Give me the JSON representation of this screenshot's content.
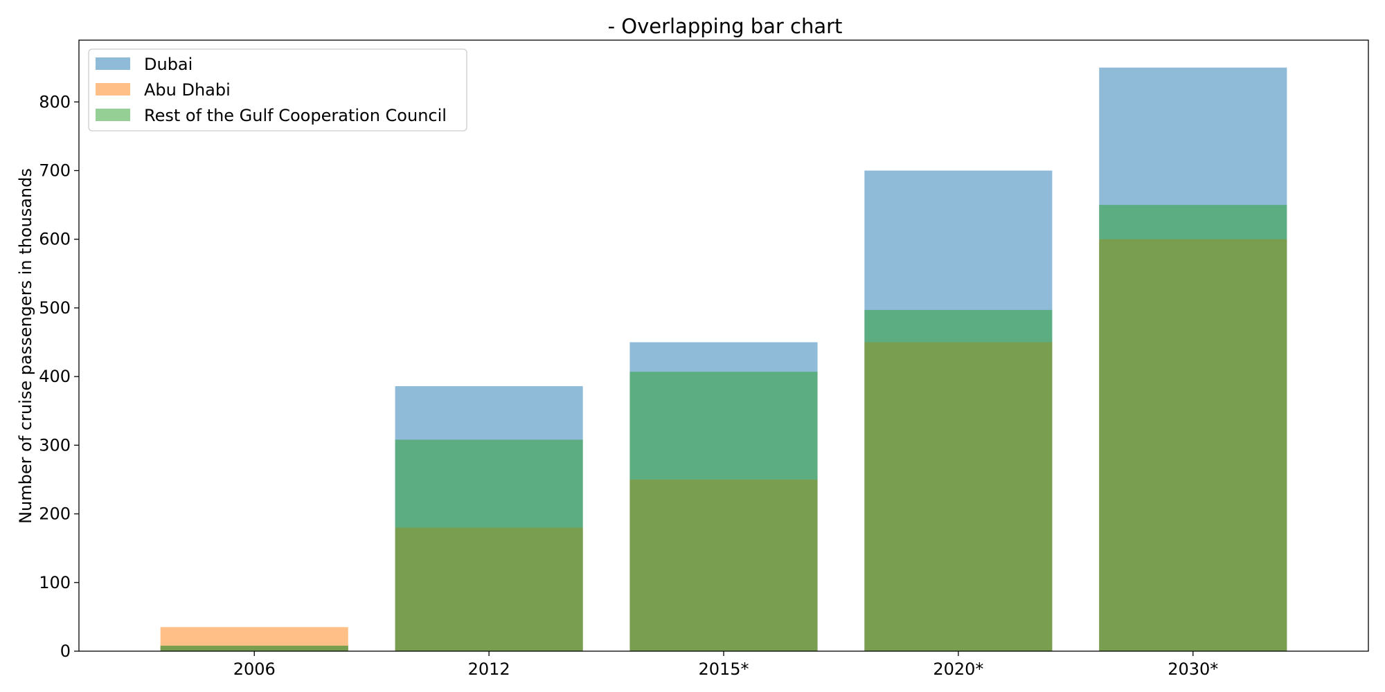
{
  "chart_data": {
    "type": "bar",
    "title": "- Overlapping bar chart",
    "xlabel": "",
    "ylabel": "Number of cruise passengers in thousands",
    "categories": [
      "2006",
      "2012",
      "2015*",
      "2020*",
      "2030*"
    ],
    "ylim": [
      0,
      890
    ],
    "yticks": [
      0,
      100,
      200,
      300,
      400,
      500,
      600,
      700,
      800
    ],
    "overlapping": true,
    "legend_position": "top-left",
    "grid": false,
    "series": [
      {
        "name": "Dubai",
        "color": "#1f77b4",
        "values": [
          8,
          386,
          450,
          700,
          850
        ]
      },
      {
        "name": "Abu Dhabi",
        "color": "#ff7f0e",
        "values": [
          35,
          180,
          250,
          450,
          600
        ]
      },
      {
        "name": "Rest of the Gulf Cooperation Council",
        "color": "#2ca02c",
        "values": [
          8,
          308,
          407,
          497,
          650
        ]
      }
    ]
  }
}
